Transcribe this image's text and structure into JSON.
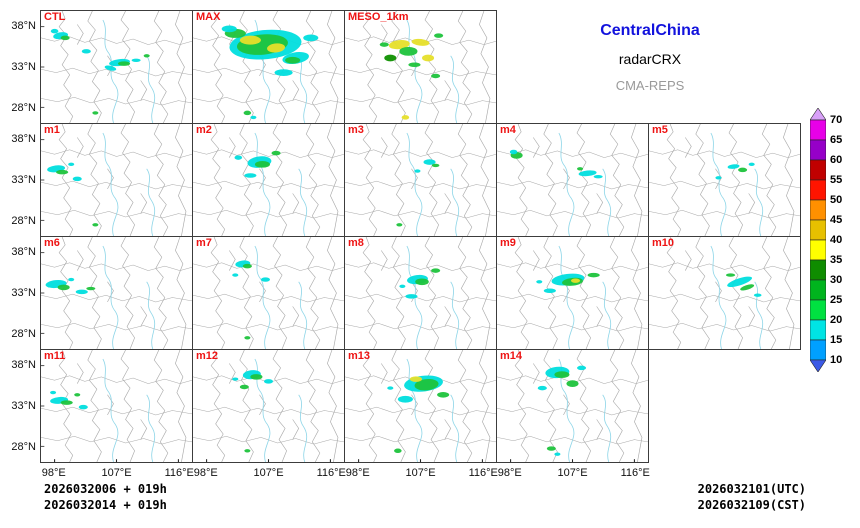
{
  "header": {
    "region": "CentralChina",
    "product": "radarCRX",
    "system": "CMA-REPS"
  },
  "axis": {
    "lat_ticks": [
      "38°N",
      "33°N",
      "28°N"
    ],
    "lon_ticks": [
      "98°E",
      "107°E",
      "116°E"
    ]
  },
  "footer": {
    "init_line1": "2026032006 + 019h",
    "init_line2": "2026032014 + 019h",
    "valid_utc": "2026032101(UTC)",
    "valid_cst": "2026032109(CST)"
  },
  "colorbar": {
    "tick_labels": [
      "70",
      "65",
      "60",
      "55",
      "50",
      "45",
      "40",
      "35",
      "30",
      "25",
      "20",
      "15",
      "10"
    ],
    "colors_top_to_bottom": [
      "#d8a0f8",
      "#e800e8",
      "#9600c8",
      "#c00000",
      "#ff1400",
      "#ff9000",
      "#e7c000",
      "#ffff00",
      "#0f8c00",
      "#00b41e",
      "#00e141",
      "#00e4e4",
      "#00a0ff",
      "#3c5ae6"
    ]
  },
  "echo_palette": {
    "C": "#00dede",
    "G": "#1ec33c",
    "D": "#0f9000",
    "Y": "#e6df2a"
  },
  "base_map": {
    "boundary_color": "#ababab",
    "river_color": "#8fd6e8",
    "boundaries": [
      "M14,0 L16,7 L12,14 L17,22 L13,31 L18,39 L14,48 L19,57 L15,66 L20,75 L16,85 L21,94 L19,100",
      "M34,0 L31,9 L36,17 L32,27 L37,35 L33,45 L38,53 L34,63 L39,71 L35,81 L40,91 L37,100",
      "M56,0 L53,8 L58,16 L54,26 L59,34 L55,44 L60,52 L56,62 L61,70 L57,80 L62,90 L59,100",
      "M78,0 L75,9 L80,18 L76,28 L81,36 L77,46 L82,54 L78,64 L83,72 L79,82 L84,92 L81,100",
      "M0,24 L9,27 L19,23 L29,28 L40,24 L50,29 L61,25 L71,30 L82,26 L92,30 L100,27",
      "M0,52 L10,55 L21,51 L32,56 L43,52 L54,57 L65,53 L76,58 L87,54 L100,57",
      "M0,78 L11,81 L22,77 L33,82 L45,78 L56,83 L68,79 L80,84 L91,80 L100,82",
      "M92,0 L89,12 L94,24 L90,38 L95,50 L91,64 L96,78 L93,100",
      "M24,12 L28,20 L24,30 M44,40 L48,48 L44,58 M66,62 L70,70 L66,80"
    ],
    "rivers": [
      "M48,100 C45,86 55,78 49,66 C43,56 50,46 44,36 C40,28 45,18 41,8",
      "M74,100 C71,88 79,80 73,68 C68,58 75,50 70,40"
    ]
  },
  "panels": [
    {
      "label": "CTL",
      "row": 0,
      "col": 0,
      "echoes": [
        [
          13,
          22,
          5,
          3,
          "C",
          -15
        ],
        [
          16,
          24,
          3,
          2,
          "G",
          0
        ],
        [
          9,
          18,
          2.5,
          2,
          "C",
          0
        ],
        [
          30,
          36,
          3,
          2,
          "C",
          0
        ],
        [
          52,
          46,
          7,
          3,
          "C",
          -10
        ],
        [
          55,
          47,
          4,
          2,
          "G",
          0
        ],
        [
          46,
          51,
          4,
          2,
          "C",
          20
        ],
        [
          63,
          44,
          3,
          1.5,
          "C",
          0
        ],
        [
          70,
          40,
          2,
          1.5,
          "G",
          0
        ],
        [
          36,
          91,
          2,
          1.5,
          "G",
          0
        ]
      ]
    },
    {
      "label": "MAX",
      "row": 0,
      "col": 1,
      "echoes": [
        [
          48,
          30,
          24,
          13,
          "C",
          -8
        ],
        [
          46,
          30,
          17,
          9,
          "G",
          -8
        ],
        [
          38,
          26,
          7,
          4,
          "Y",
          0
        ],
        [
          55,
          33,
          6,
          4,
          "Y",
          -10
        ],
        [
          28,
          20,
          7,
          4,
          "G",
          0
        ],
        [
          24,
          16,
          5,
          3,
          "C",
          0
        ],
        [
          68,
          42,
          9,
          5,
          "C",
          -15
        ],
        [
          66,
          44,
          5,
          3,
          "G",
          0
        ],
        [
          78,
          24,
          5,
          3,
          "C",
          0
        ],
        [
          60,
          55,
          6,
          3,
          "C",
          0
        ],
        [
          36,
          91,
          2.5,
          2,
          "G",
          0
        ],
        [
          40,
          95,
          2,
          1.5,
          "C",
          0
        ]
      ]
    },
    {
      "label": "MESO_1km",
      "row": 0,
      "col": 2,
      "echoes": [
        [
          36,
          30,
          7,
          4,
          "Y",
          -10
        ],
        [
          42,
          36,
          6,
          4,
          "G",
          0
        ],
        [
          50,
          28,
          6,
          3,
          "Y",
          10
        ],
        [
          30,
          42,
          4,
          3,
          "D",
          0
        ],
        [
          55,
          42,
          4,
          3,
          "Y",
          0
        ],
        [
          46,
          48,
          4,
          2,
          "G",
          0
        ],
        [
          60,
          58,
          3,
          2,
          "G",
          0
        ],
        [
          26,
          30,
          3,
          2,
          "G",
          0
        ],
        [
          40,
          95,
          2.5,
          2,
          "Y",
          0
        ],
        [
          62,
          22,
          3,
          2,
          "G",
          0
        ]
      ]
    },
    {
      "label": "m1",
      "row": 1,
      "col": 0,
      "echoes": [
        [
          10,
          40,
          6,
          3,
          "C",
          -10
        ],
        [
          14,
          43,
          4,
          2,
          "G",
          0
        ],
        [
          24,
          49,
          3,
          2,
          "C",
          0
        ],
        [
          20,
          36,
          2,
          1.5,
          "C",
          0
        ],
        [
          36,
          90,
          2,
          1.5,
          "G",
          0
        ]
      ]
    },
    {
      "label": "m2",
      "row": 1,
      "col": 1,
      "echoes": [
        [
          44,
          34,
          8,
          5,
          "C",
          -12
        ],
        [
          46,
          36,
          5,
          3,
          "G",
          0
        ],
        [
          38,
          46,
          4,
          2,
          "C",
          0
        ],
        [
          55,
          26,
          3,
          2,
          "G",
          0
        ],
        [
          30,
          30,
          2.5,
          2,
          "C",
          0
        ]
      ]
    },
    {
      "label": "m3",
      "row": 1,
      "col": 2,
      "echoes": [
        [
          56,
          34,
          4,
          2.5,
          "C",
          0
        ],
        [
          60,
          37,
          2.5,
          1.5,
          "G",
          0
        ],
        [
          48,
          42,
          2,
          1.5,
          "C",
          0
        ],
        [
          36,
          90,
          2,
          1.5,
          "G",
          0
        ]
      ]
    },
    {
      "label": "m4",
      "row": 1,
      "col": 3,
      "echoes": [
        [
          13,
          28,
          4,
          3,
          "G",
          0
        ],
        [
          11,
          25,
          2.5,
          2,
          "C",
          0
        ],
        [
          60,
          44,
          6,
          2.5,
          "C",
          -8
        ],
        [
          67,
          47,
          3,
          1.5,
          "C",
          0
        ],
        [
          55,
          40,
          2,
          1.5,
          "G",
          0
        ]
      ]
    },
    {
      "label": "m5",
      "row": 1,
      "col": 4,
      "echoes": [
        [
          56,
          38,
          4,
          2,
          "C",
          -10
        ],
        [
          62,
          41,
          3,
          2,
          "G",
          0
        ],
        [
          46,
          48,
          2,
          1.5,
          "C",
          0
        ],
        [
          68,
          36,
          2,
          1.5,
          "C",
          0
        ]
      ]
    },
    {
      "label": "m6",
      "row": 2,
      "col": 0,
      "echoes": [
        [
          10,
          42,
          7,
          3.5,
          "C",
          -8
        ],
        [
          15,
          45,
          4,
          2.5,
          "G",
          0
        ],
        [
          27,
          49,
          4,
          2,
          "C",
          0
        ],
        [
          33,
          46,
          3,
          1.5,
          "G",
          0
        ],
        [
          20,
          38,
          2,
          1.5,
          "C",
          0
        ]
      ]
    },
    {
      "label": "m7",
      "row": 2,
      "col": 1,
      "echoes": [
        [
          33,
          24,
          5,
          3,
          "C",
          -10
        ],
        [
          36,
          26,
          3,
          2,
          "G",
          0
        ],
        [
          48,
          38,
          3,
          2,
          "C",
          0
        ],
        [
          28,
          34,
          2,
          1.5,
          "C",
          0
        ],
        [
          36,
          90,
          2,
          1.5,
          "G",
          0
        ]
      ]
    },
    {
      "label": "m8",
      "row": 2,
      "col": 2,
      "echoes": [
        [
          48,
          38,
          7,
          4,
          "C",
          -10
        ],
        [
          51,
          40,
          4.5,
          3,
          "G",
          0
        ],
        [
          44,
          53,
          4,
          2,
          "C",
          0
        ],
        [
          60,
          30,
          3,
          2,
          "G",
          0
        ],
        [
          38,
          44,
          2,
          1.5,
          "C",
          0
        ]
      ]
    },
    {
      "label": "m9",
      "row": 2,
      "col": 3,
      "echoes": [
        [
          47,
          38,
          11,
          5,
          "C",
          -10
        ],
        [
          50,
          40,
          7,
          3.5,
          "G",
          -10
        ],
        [
          52,
          39,
          3,
          2,
          "Y",
          0
        ],
        [
          35,
          48,
          4,
          2,
          "C",
          0
        ],
        [
          64,
          34,
          4,
          2,
          "G",
          0
        ],
        [
          28,
          40,
          2,
          1.5,
          "C",
          0
        ]
      ]
    },
    {
      "label": "m10",
      "row": 2,
      "col": 4,
      "echoes": [
        [
          60,
          40,
          9,
          3,
          "C",
          -25
        ],
        [
          65,
          45,
          5,
          2,
          "G",
          -25
        ],
        [
          54,
          34,
          3,
          1.5,
          "G",
          0
        ],
        [
          72,
          52,
          2.5,
          1.5,
          "C",
          0
        ]
      ]
    },
    {
      "label": "m11",
      "row": 3,
      "col": 0,
      "echoes": [
        [
          12,
          45,
          6,
          3,
          "C",
          -8
        ],
        [
          17,
          47,
          4,
          2,
          "G",
          0
        ],
        [
          28,
          51,
          3,
          2,
          "C",
          0
        ],
        [
          24,
          40,
          2,
          1.5,
          "G",
          0
        ],
        [
          8,
          38,
          2,
          1.5,
          "C",
          0
        ]
      ]
    },
    {
      "label": "m12",
      "row": 3,
      "col": 1,
      "echoes": [
        [
          39,
          22,
          6,
          4,
          "C",
          -10
        ],
        [
          42,
          24,
          4,
          2.5,
          "G",
          0
        ],
        [
          34,
          33,
          3,
          2,
          "G",
          0
        ],
        [
          50,
          28,
          3,
          2,
          "C",
          0
        ],
        [
          28,
          26,
          2,
          1.5,
          "C",
          0
        ],
        [
          36,
          90,
          2,
          1.5,
          "G",
          0
        ]
      ]
    },
    {
      "label": "m13",
      "row": 3,
      "col": 2,
      "echoes": [
        [
          52,
          30,
          13,
          7,
          "C",
          -10
        ],
        [
          54,
          31,
          8,
          5,
          "G",
          -10
        ],
        [
          47,
          26,
          4,
          2.5,
          "Y",
          0
        ],
        [
          40,
          44,
          5,
          3,
          "C",
          0
        ],
        [
          65,
          40,
          4,
          2.5,
          "G",
          0
        ],
        [
          35,
          90,
          2.5,
          2,
          "G",
          0
        ],
        [
          30,
          34,
          2,
          1.5,
          "C",
          0
        ]
      ]
    },
    {
      "label": "m14",
      "row": 3,
      "col": 3,
      "echoes": [
        [
          40,
          20,
          8,
          5,
          "C",
          -8
        ],
        [
          43,
          22,
          5,
          3,
          "G",
          0
        ],
        [
          50,
          30,
          4,
          3,
          "G",
          0
        ],
        [
          30,
          34,
          3,
          2,
          "C",
          0
        ],
        [
          56,
          16,
          3,
          2,
          "C",
          0
        ],
        [
          36,
          88,
          3,
          2,
          "G",
          0
        ],
        [
          40,
          93,
          2,
          1.5,
          "C",
          0
        ]
      ]
    }
  ]
}
